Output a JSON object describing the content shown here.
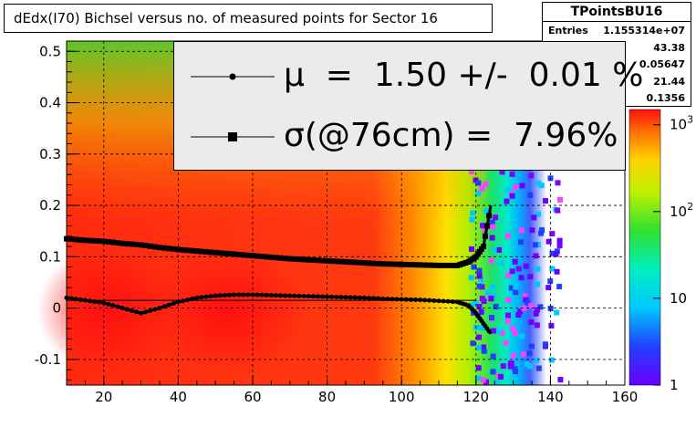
{
  "title": "dEdx(I70) Bichsel versus no. of measured points for Sector 16",
  "stats": {
    "name": "TPointsBU16",
    "rows": [
      {
        "label": "Entries",
        "value": "1.155314e+07"
      },
      {
        "label": "",
        "value": "43.38"
      },
      {
        "label": "",
        "value": "0.05647"
      },
      {
        "label": "",
        "value": "21.44"
      },
      {
        "label": "",
        "value": "0.1356"
      }
    ]
  },
  "legend": {
    "entries": [
      {
        "marker": "circle",
        "text": "μ  =  1.50 +/-  0.01 %"
      },
      {
        "marker": "square",
        "text": "σ(@76cm) =  7.96%"
      }
    ]
  },
  "chart_data": {
    "type": "heatmap",
    "title": "dEdx(I70) Bichsel versus no. of measured points for Sector 16",
    "xlabel": "",
    "ylabel": "",
    "xlim": [
      10,
      160
    ],
    "ylim": [
      -0.15,
      0.52
    ],
    "x_ticks": [
      "20",
      "40",
      "60",
      "80",
      "100",
      "120",
      "140",
      "160"
    ],
    "y_ticks": [
      "-0.1",
      "0",
      "0.1",
      "0.2",
      "0.3",
      "0.4",
      "0.5"
    ],
    "z_scale": "log",
    "z_range": [
      1,
      1500
    ],
    "z_ticks": [
      "1",
      "10",
      "10^2",
      "10^3"
    ],
    "grid": true,
    "series": [
      {
        "name": "mu",
        "marker": "circle",
        "x": [
          10,
          15,
          20,
          25,
          30,
          35,
          40,
          45,
          50,
          55,
          60,
          65,
          70,
          75,
          80,
          85,
          90,
          95,
          100,
          105,
          110,
          115,
          118,
          120,
          122,
          124
        ],
        "y": [
          0.02,
          0.015,
          0.01,
          0.0,
          -0.01,
          0.0,
          0.012,
          0.02,
          0.024,
          0.026,
          0.026,
          0.025,
          0.024,
          0.023,
          0.022,
          0.021,
          0.02,
          0.018,
          0.017,
          0.016,
          0.014,
          0.012,
          0.005,
          -0.01,
          -0.03,
          -0.05
        ]
      },
      {
        "name": "sigma",
        "marker": "square",
        "x": [
          10,
          15,
          20,
          25,
          30,
          35,
          40,
          45,
          50,
          55,
          60,
          65,
          70,
          75,
          80,
          85,
          90,
          95,
          100,
          105,
          110,
          115,
          118,
          120,
          122,
          124
        ],
        "y": [
          0.135,
          0.132,
          0.13,
          0.126,
          0.123,
          0.118,
          0.114,
          0.111,
          0.108,
          0.105,
          0.102,
          0.099,
          0.096,
          0.094,
          0.092,
          0.09,
          0.088,
          0.086,
          0.085,
          0.084,
          0.083,
          0.083,
          0.09,
          0.1,
          0.12,
          0.2
        ]
      }
    ]
  }
}
